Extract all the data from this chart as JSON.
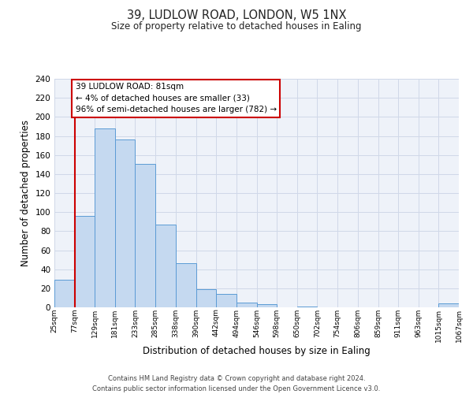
{
  "title": "39, LUDLOW ROAD, LONDON, W5 1NX",
  "subtitle": "Size of property relative to detached houses in Ealing",
  "xlabel": "Distribution of detached houses by size in Ealing",
  "ylabel": "Number of detached properties",
  "footer_lines": [
    "Contains HM Land Registry data © Crown copyright and database right 2024.",
    "Contains public sector information licensed under the Open Government Licence v3.0."
  ],
  "bin_edges": [
    25,
    77,
    129,
    181,
    233,
    285,
    338,
    390,
    442,
    494,
    546,
    598,
    650,
    702,
    754,
    806,
    859,
    911,
    963,
    1015,
    1067
  ],
  "bin_labels": [
    "25sqm",
    "77sqm",
    "129sqm",
    "181sqm",
    "233sqm",
    "285sqm",
    "338sqm",
    "390sqm",
    "442sqm",
    "494sqm",
    "546sqm",
    "598sqm",
    "650sqm",
    "702sqm",
    "754sqm",
    "806sqm",
    "859sqm",
    "911sqm",
    "963sqm",
    "1015sqm",
    "1067sqm"
  ],
  "counts": [
    29,
    96,
    188,
    176,
    151,
    87,
    46,
    19,
    14,
    5,
    3,
    0,
    1,
    0,
    0,
    0,
    0,
    0,
    0,
    4
  ],
  "bar_facecolor": "#c5d9f0",
  "bar_edgecolor": "#5b9bd5",
  "grid_color": "#d0d8e8",
  "background_color": "#eef2f9",
  "property_line_x": 77,
  "property_line_color": "#cc0000",
  "annotation_line1": "39 LUDLOW ROAD: 81sqm",
  "annotation_line2": "← 4% of detached houses are smaller (33)",
  "annotation_line3": "96% of semi-detached houses are larger (782) →",
  "annotation_box_edgecolor": "#cc0000",
  "ylim": [
    0,
    240
  ],
  "yticks": [
    0,
    20,
    40,
    60,
    80,
    100,
    120,
    140,
    160,
    180,
    200,
    220,
    240
  ]
}
